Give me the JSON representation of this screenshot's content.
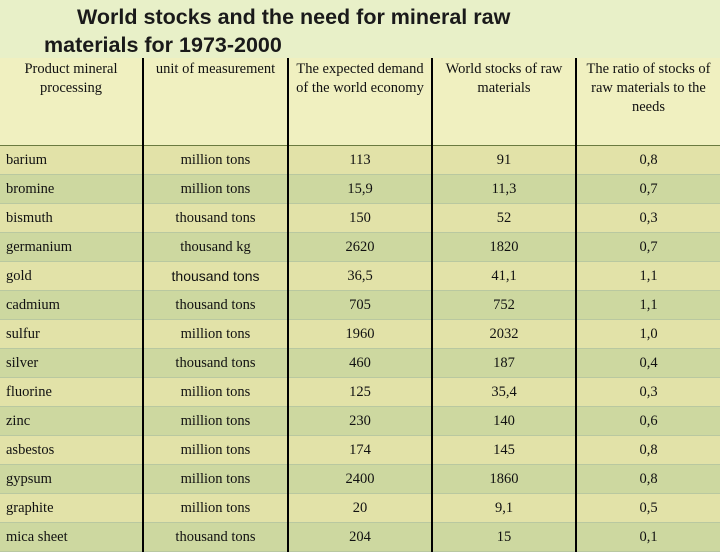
{
  "title": {
    "line1": "World stocks and the need for mineral raw",
    "line2": "materials for 1973-2000"
  },
  "columns": [
    "Product mineral processing",
    "unit of measurement",
    "The expected demand of the world economy",
    "World stocks of raw materials",
    "The ratio of stocks of raw materials to the needs"
  ],
  "rows": [
    [
      "barium",
      "million tons",
      "113",
      "91",
      "0,8"
    ],
    [
      "bromine",
      "million tons",
      "15,9",
      "11,3",
      "0,7"
    ],
    [
      "bismuth",
      "thousand tons",
      "150",
      "52",
      "0,3"
    ],
    [
      "germanium",
      "thousand kg",
      "2620",
      "1820",
      "0,7"
    ],
    [
      "gold",
      "thousand tons",
      "36,5",
      "41,1",
      "1,1"
    ],
    [
      "cadmium",
      "thousand tons",
      "705",
      "752",
      "1,1"
    ],
    [
      "sulfur",
      "million tons",
      "1960",
      "2032",
      "1,0"
    ],
    [
      "silver",
      "thousand tons",
      "460",
      "187",
      "0,4"
    ],
    [
      "fluorine",
      "million tons",
      "125",
      "35,4",
      "0,3"
    ],
    [
      "zinc",
      "million tons",
      "230",
      "140",
      "0,6"
    ],
    [
      "asbestos",
      "million tons",
      "174",
      "145",
      "0,8"
    ],
    [
      "gypsum",
      "million tons",
      "2400",
      "1860",
      "0,8"
    ],
    [
      "graphite",
      "million tons",
      "20",
      "9,1",
      "0,5"
    ],
    [
      "mica sheet",
      "thousand tons",
      "204",
      "15",
      "0,1"
    ]
  ]
}
